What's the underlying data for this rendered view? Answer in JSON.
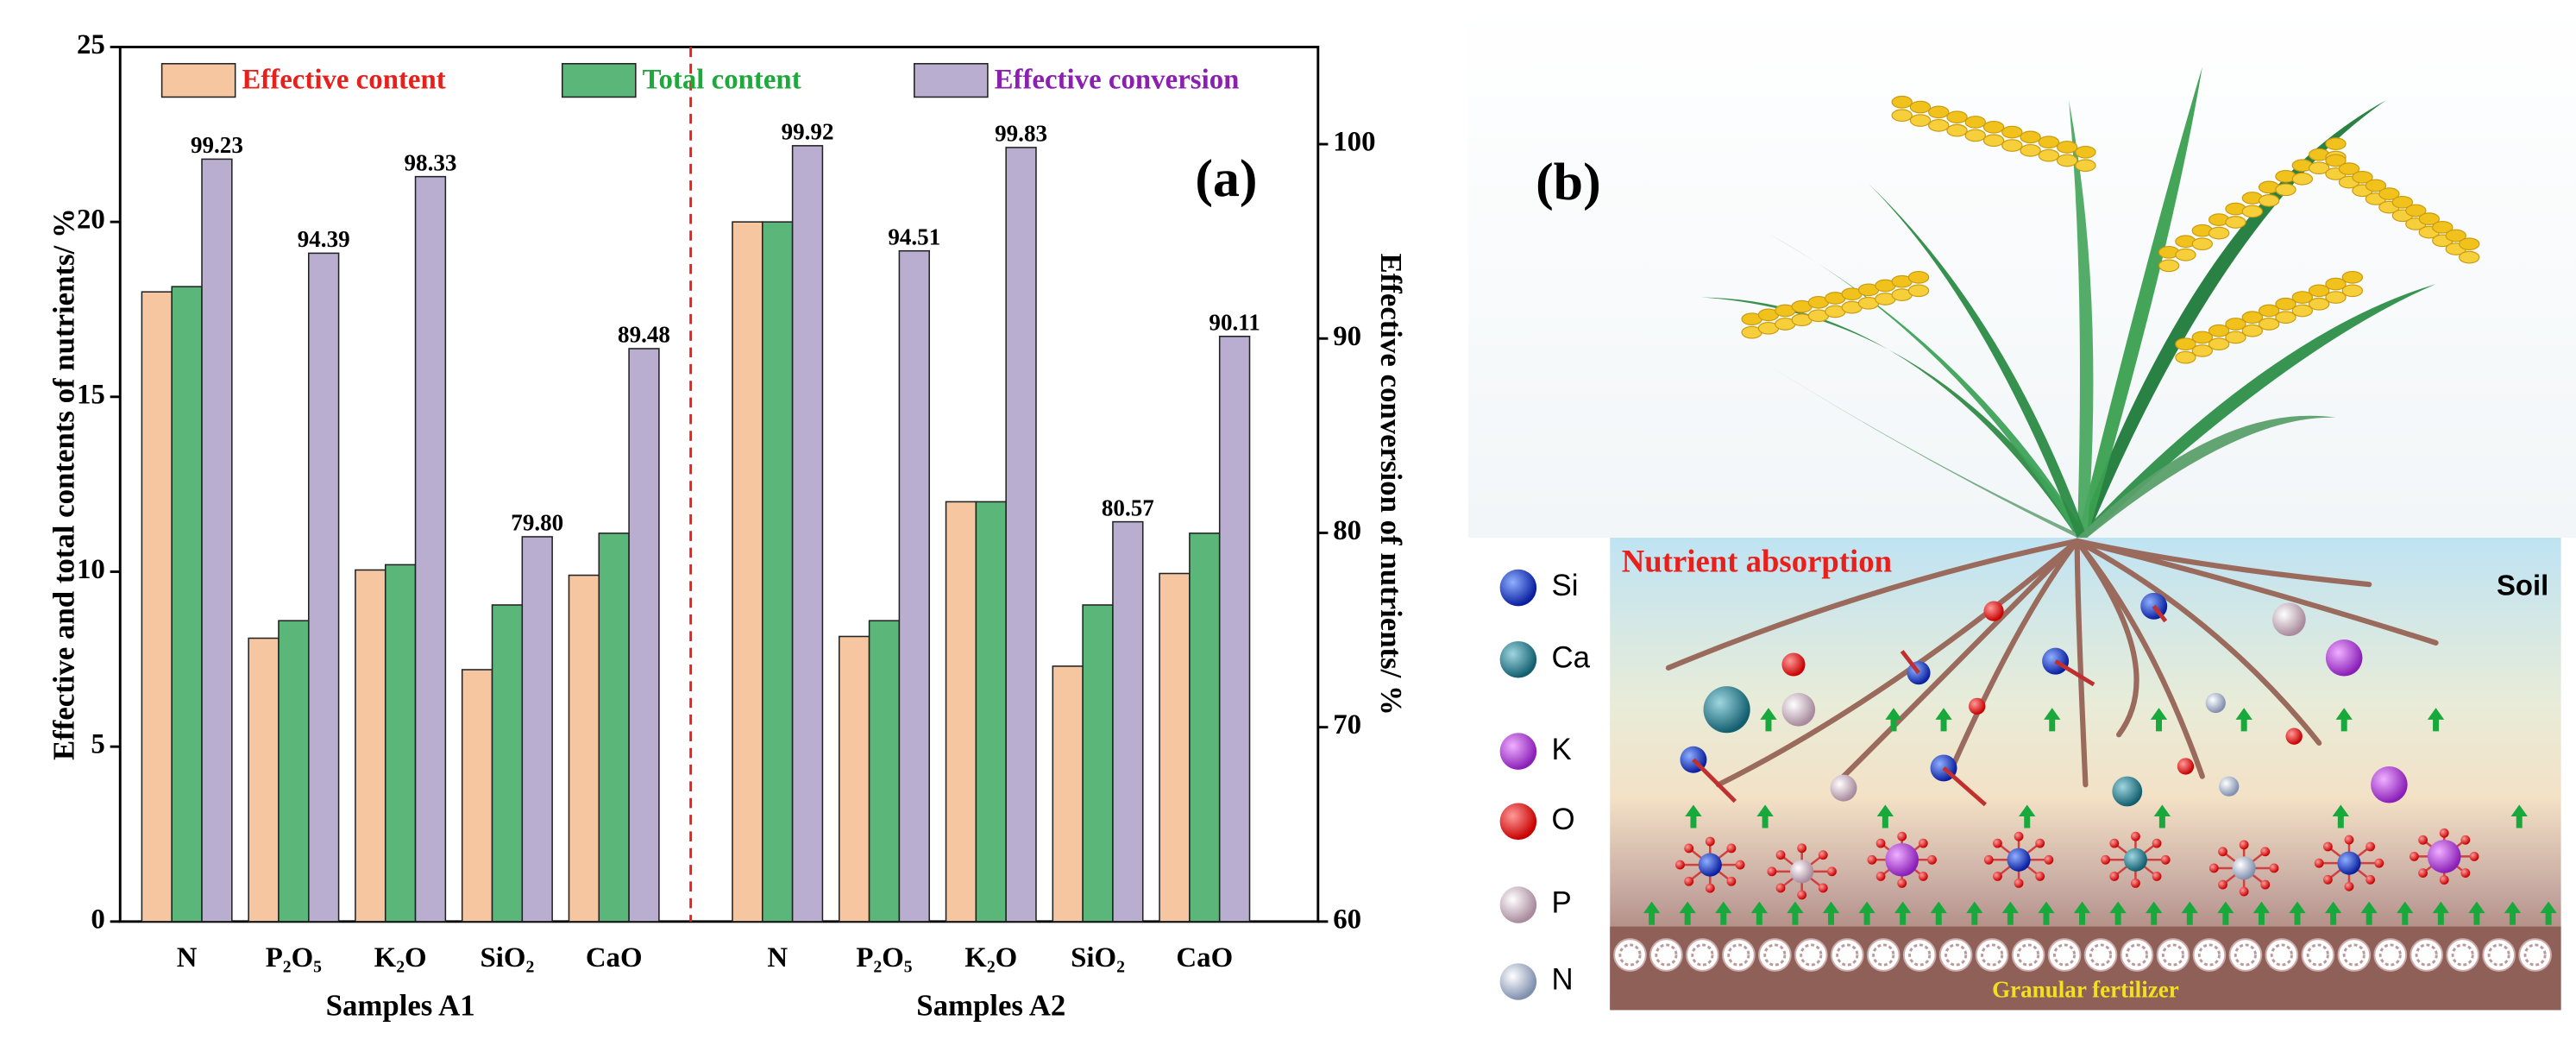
{
  "chart_data": {
    "type": "bar",
    "categories": [
      "N",
      "P₂O₅",
      "K₂O",
      "SiO₂",
      "CaO",
      "N",
      "P₂O₅",
      "K₂O",
      "SiO₂",
      "CaO"
    ],
    "x_groups": [
      "Samples A1",
      "Samples A2"
    ],
    "annotation": "(a)",
    "ylabel": "Effective and total contents of nutrients/ %",
    "y2label": "Effective conversion of nutrients/ %",
    "ylim": [
      0,
      25
    ],
    "yticks": [
      0,
      5,
      10,
      15,
      20,
      25
    ],
    "y2lim": [
      60,
      105
    ],
    "y2ticks": [
      60,
      70,
      80,
      90,
      100
    ],
    "legend": "top",
    "series": [
      {
        "name": "Effective content",
        "color": "#f5c6a0",
        "label_color": "#e8201c",
        "values": [
          18.0,
          8.1,
          10.05,
          7.2,
          9.9,
          20.0,
          8.15,
          12.0,
          7.3,
          9.95
        ]
      },
      {
        "name": "Total content",
        "color": "#5bb67a",
        "label_color": "#1fa83c",
        "values": [
          18.15,
          8.6,
          10.2,
          9.05,
          11.1,
          20.0,
          8.6,
          12.0,
          9.05,
          11.1
        ]
      },
      {
        "name": "Effective conversion",
        "color": "#b9aed0",
        "label_color": "#8a1fb0",
        "axis": "y2",
        "values": [
          99.23,
          94.39,
          98.33,
          79.8,
          89.48,
          99.92,
          94.51,
          99.83,
          80.57,
          90.11
        ],
        "value_labels": [
          "99.23",
          "94.39",
          "98.33",
          "79.80",
          "89.48",
          "99.92",
          "94.51",
          "99.83",
          "80.57",
          "90.11"
        ]
      }
    ]
  },
  "figure_b": {
    "label": "(b)",
    "absorption": "Nutrient absorption",
    "soil": "Soil",
    "fertilizer": "Granular fertilizer",
    "elements": [
      "Si",
      "Ca",
      "K",
      "O",
      "P",
      "N"
    ]
  }
}
